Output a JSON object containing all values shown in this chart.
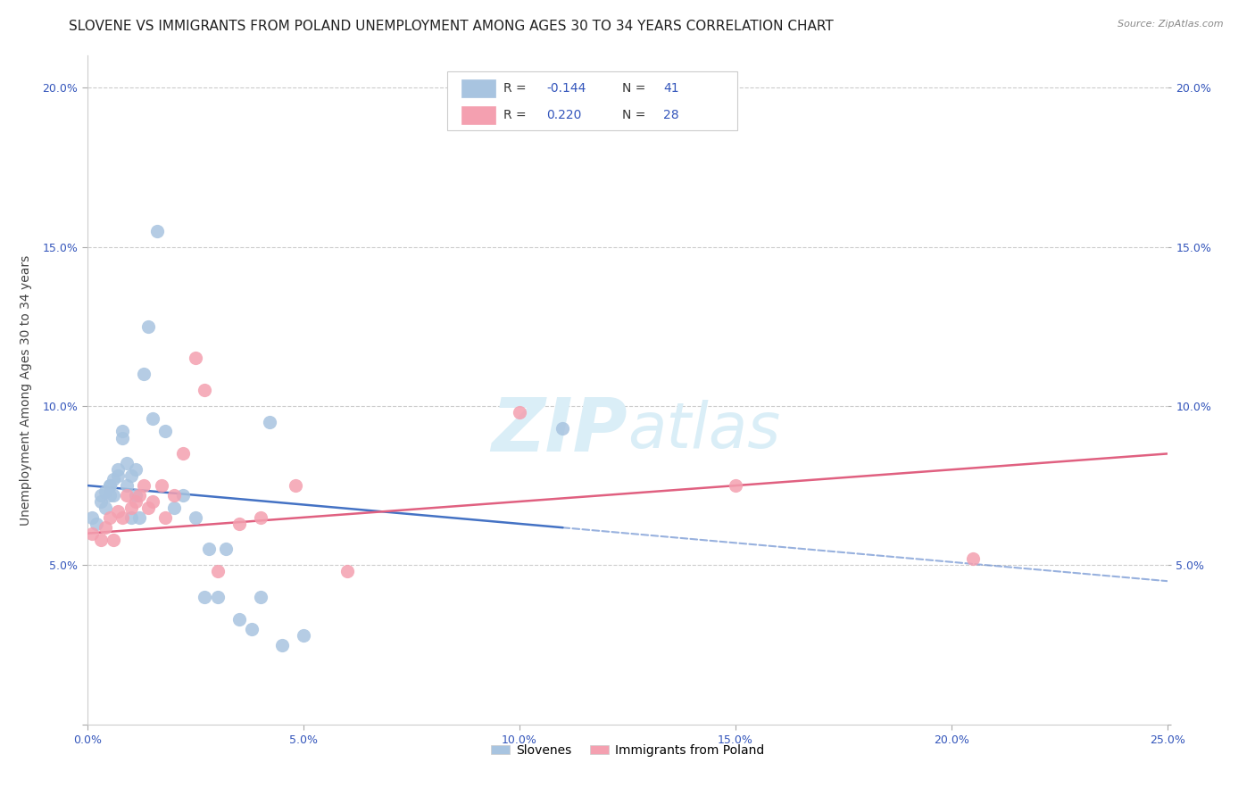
{
  "title": "SLOVENE VS IMMIGRANTS FROM POLAND UNEMPLOYMENT AMONG AGES 30 TO 34 YEARS CORRELATION CHART",
  "source": "Source: ZipAtlas.com",
  "ylabel": "Unemployment Among Ages 30 to 34 years",
  "xlim": [
    0.0,
    0.25
  ],
  "ylim": [
    0.0,
    0.21
  ],
  "xticks": [
    0.0,
    0.05,
    0.1,
    0.15,
    0.2,
    0.25
  ],
  "yticks": [
    0.0,
    0.05,
    0.1,
    0.15,
    0.2
  ],
  "ytick_labels": [
    "",
    "5.0%",
    "10.0%",
    "15.0%",
    "20.0%"
  ],
  "xtick_labels": [
    "0.0%",
    "5.0%",
    "10.0%",
    "15.0%",
    "20.0%",
    "25.0%"
  ],
  "slovene_color": "#a8c4e0",
  "poland_color": "#f4a0b0",
  "slovene_line_color": "#4472c4",
  "poland_line_color": "#e06080",
  "slovene_x": [
    0.001,
    0.002,
    0.003,
    0.003,
    0.004,
    0.004,
    0.005,
    0.005,
    0.005,
    0.006,
    0.006,
    0.007,
    0.007,
    0.008,
    0.008,
    0.009,
    0.009,
    0.01,
    0.01,
    0.011,
    0.011,
    0.012,
    0.013,
    0.014,
    0.015,
    0.016,
    0.018,
    0.02,
    0.022,
    0.025,
    0.027,
    0.028,
    0.03,
    0.032,
    0.035,
    0.038,
    0.04,
    0.042,
    0.045,
    0.05,
    0.11
  ],
  "slovene_y": [
    0.065,
    0.063,
    0.07,
    0.072,
    0.068,
    0.073,
    0.072,
    0.075,
    0.075,
    0.072,
    0.077,
    0.078,
    0.08,
    0.09,
    0.092,
    0.075,
    0.082,
    0.078,
    0.065,
    0.08,
    0.072,
    0.065,
    0.11,
    0.125,
    0.096,
    0.155,
    0.092,
    0.068,
    0.072,
    0.065,
    0.04,
    0.055,
    0.04,
    0.055,
    0.033,
    0.03,
    0.04,
    0.095,
    0.025,
    0.028,
    0.093
  ],
  "poland_x": [
    0.001,
    0.003,
    0.004,
    0.005,
    0.006,
    0.007,
    0.008,
    0.009,
    0.01,
    0.011,
    0.012,
    0.013,
    0.014,
    0.015,
    0.017,
    0.018,
    0.02,
    0.022,
    0.025,
    0.027,
    0.03,
    0.035,
    0.04,
    0.048,
    0.06,
    0.1,
    0.15,
    0.205
  ],
  "poland_y": [
    0.06,
    0.058,
    0.062,
    0.065,
    0.058,
    0.067,
    0.065,
    0.072,
    0.068,
    0.07,
    0.072,
    0.075,
    0.068,
    0.07,
    0.075,
    0.065,
    0.072,
    0.085,
    0.115,
    0.105,
    0.048,
    0.063,
    0.065,
    0.075,
    0.048,
    0.098,
    0.075,
    0.052
  ],
  "background_color": "#ffffff",
  "grid_color": "#cccccc",
  "title_fontsize": 11,
  "label_fontsize": 10,
  "tick_fontsize": 9,
  "watermark_color": "#daeef7",
  "watermark_fontsize": 60
}
